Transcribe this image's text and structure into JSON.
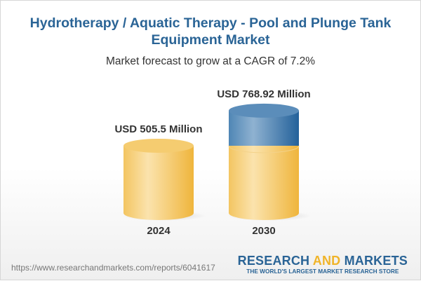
{
  "title": "Hydrotherapy / Aquatic Therapy - Pool and Plunge Tank Equipment Market",
  "subtitle": "Market forecast to grow at a CAGR of 7.2%",
  "url": "https://www.researchandmarkets.com/reports/6041617",
  "logo": {
    "part1": "RESEARCH ",
    "part2": "AND",
    "part3": " MARKETS",
    "tagline": "THE WORLD'S LARGEST MARKET RESEARCH STORE"
  },
  "colors": {
    "base": "#f2c14e",
    "growth": "#2f6ea3",
    "title": "#2a6496"
  },
  "chart_data": {
    "type": "bar",
    "categories": [
      "2024",
      "2030"
    ],
    "values": [
      505.5,
      768.92
    ],
    "data_labels": [
      "USD 505.5 Million",
      "USD 768.92 Million"
    ],
    "unit": "USD Million",
    "cagr": "7.2%"
  }
}
